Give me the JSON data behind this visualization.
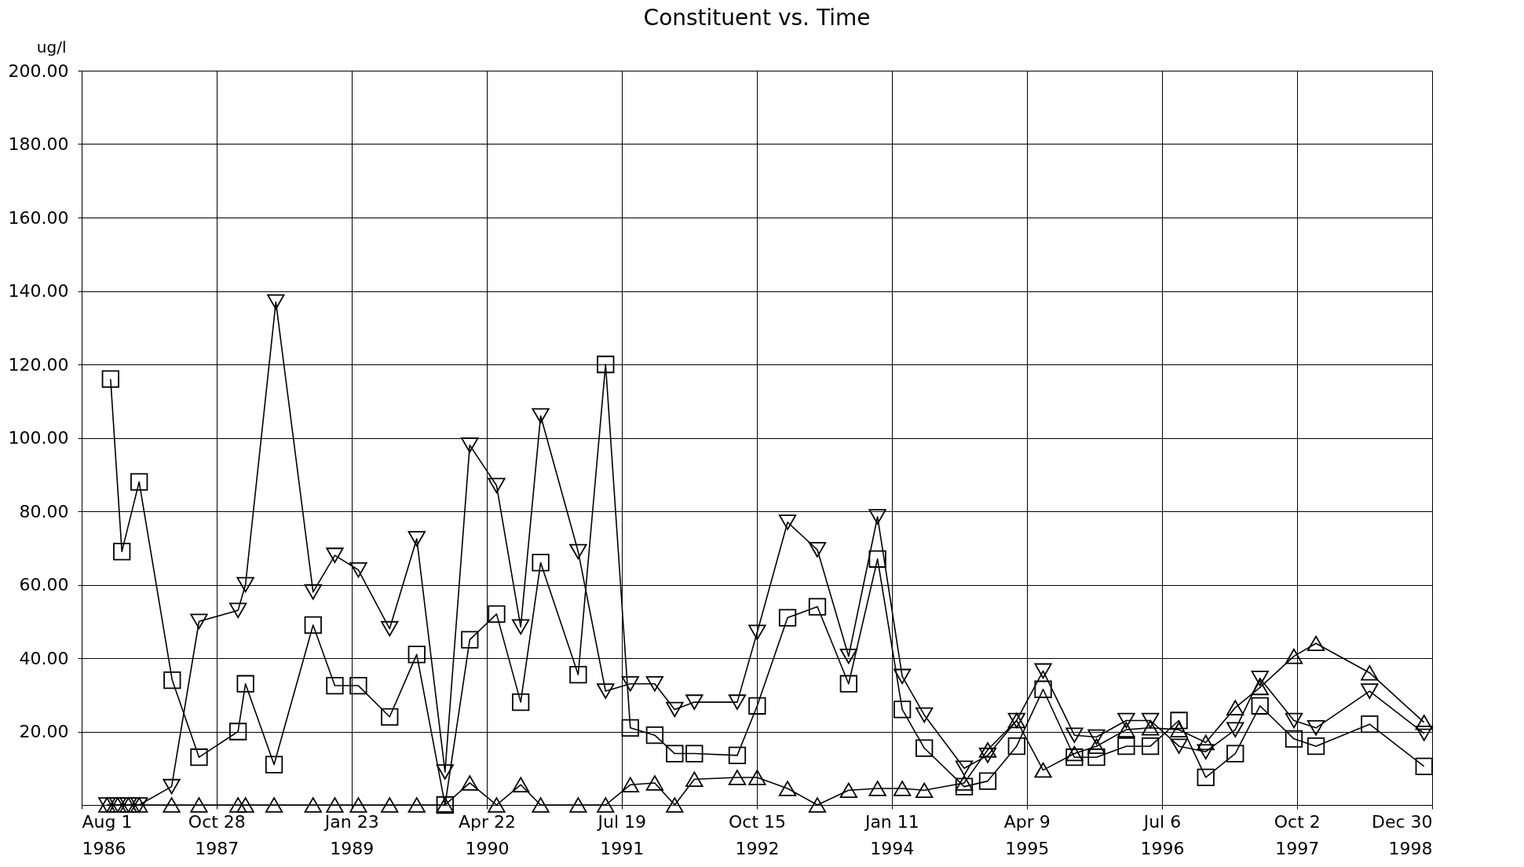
{
  "chart_data": {
    "type": "line",
    "title": "Constituent vs. Time",
    "ylabel": "ug/l",
    "ylim": [
      0,
      200
    ],
    "yticks": [
      {
        "value": 20,
        "label": "20.00"
      },
      {
        "value": 40,
        "label": "40.00"
      },
      {
        "value": 60,
        "label": "60.00"
      },
      {
        "value": 80,
        "label": "80.00"
      },
      {
        "value": 100,
        "label": "100.00"
      },
      {
        "value": 120,
        "label": "120.00"
      },
      {
        "value": 140,
        "label": "140.00"
      },
      {
        "value": 160,
        "label": "160.00"
      },
      {
        "value": 180,
        "label": "180.00"
      },
      {
        "value": 200,
        "label": "200.00"
      }
    ],
    "xlim": [
      "1986-08-01",
      "1998-12-30"
    ],
    "xticks": [
      {
        "value": "1986-08-01",
        "label": "Aug 1\n1986"
      },
      {
        "value": "1987-10-28",
        "label": "Oct 28\n1987"
      },
      {
        "value": "1989-01-23",
        "label": "Jan 23\n1989"
      },
      {
        "value": "1990-04-22",
        "label": "Apr 22\n1990"
      },
      {
        "value": "1991-07-19",
        "label": "Jul 19\n1991"
      },
      {
        "value": "1992-10-15",
        "label": "Oct 15\n1992"
      },
      {
        "value": "1994-01-11",
        "label": "Jan 11\n1994"
      },
      {
        "value": "1995-04-09",
        "label": "Apr 9\n1995"
      },
      {
        "value": "1996-07-06",
        "label": "Jul 6\n1996"
      },
      {
        "value": "1997-10-02",
        "label": "Oct 2\n1997"
      },
      {
        "value": "1998-12-30",
        "label": "Dec 30\n1998"
      }
    ],
    "grid": true,
    "legend": false,
    "line_style": "solid",
    "series": [
      {
        "color": "#000000",
        "marker": "square",
        "x": [
          "1986-11-06",
          "1986-12-14",
          "1987-02-10",
          "1987-06-01",
          "1987-08-30",
          "1988-01-08",
          "1988-02-02",
          "1988-05-08",
          "1988-09-16",
          "1988-11-28",
          "1989-02-15",
          "1989-05-31",
          "1989-08-30",
          "1989-12-03",
          "1990-02-24",
          "1990-05-25",
          "1990-08-14",
          "1990-10-20",
          "1991-02-23",
          "1991-05-26",
          "1991-08-17",
          "1991-11-07",
          "1992-01-13",
          "1992-03-19",
          "1992-08-10",
          "1992-10-16",
          "1993-01-26",
          "1993-05-06",
          "1993-08-19",
          "1993-11-24",
          "1994-02-15",
          "1994-04-30",
          "1994-09-11",
          "1994-11-29",
          "1995-03-06",
          "1995-06-03",
          "1995-09-16",
          "1995-11-29",
          "1996-03-08",
          "1996-05-28",
          "1996-09-01",
          "1996-11-30",
          "1997-03-09",
          "1997-05-31",
          "1997-09-22",
          "1997-12-05",
          "1998-06-03",
          "1998-12-03"
        ],
        "values": [
          116,
          69,
          88,
          34,
          13,
          20,
          33,
          11,
          49,
          32.5,
          32.5,
          24,
          41,
          0,
          45,
          52,
          28,
          66,
          35.5,
          120,
          21,
          19,
          14,
          14,
          13.5,
          27,
          51,
          54,
          33,
          67,
          26,
          15.5,
          5,
          6.5,
          16,
          31.5,
          13,
          13,
          16,
          16,
          23,
          7.5,
          14,
          27,
          18,
          16,
          22,
          10.5
        ]
      },
      {
        "color": "#000000",
        "marker": "triangle-down",
        "x": [
          "1986-10-25",
          "1986-11-30",
          "1987-01-05",
          "1987-02-10",
          "1987-05-30",
          "1987-08-30",
          "1988-01-08",
          "1988-02-02",
          "1988-05-14",
          "1988-09-16",
          "1988-11-28",
          "1989-02-15",
          "1989-05-31",
          "1989-08-30",
          "1989-12-03",
          "1990-02-24",
          "1990-05-25",
          "1990-08-14",
          "1990-10-20",
          "1991-02-23",
          "1991-05-26",
          "1991-08-17",
          "1991-11-07",
          "1992-01-13",
          "1992-03-19",
          "1992-08-10",
          "1992-10-16",
          "1993-01-26",
          "1993-05-06",
          "1993-08-19",
          "1993-11-24",
          "1994-02-15",
          "1994-04-30",
          "1994-09-11",
          "1994-11-29",
          "1995-03-06",
          "1995-06-03",
          "1995-09-16",
          "1995-11-29",
          "1996-03-08",
          "1996-05-28",
          "1996-09-01",
          "1996-11-30",
          "1997-03-09",
          "1997-05-31",
          "1997-09-22",
          "1997-12-05",
          "1998-06-03",
          "1998-12-03"
        ],
        "values": [
          0,
          0,
          0,
          0,
          5,
          50,
          53,
          60,
          137,
          58,
          68,
          64,
          48,
          72.5,
          9,
          98,
          87,
          48.5,
          106,
          69,
          31,
          33,
          33,
          26,
          28,
          28,
          47,
          77,
          69.5,
          40.5,
          78.5,
          35,
          24.5,
          10,
          13.5,
          23,
          36.5,
          19,
          18.5,
          23,
          23,
          16,
          14.5,
          20.5,
          34.5,
          23,
          21,
          31,
          19.5
        ]
      },
      {
        "color": "#000000",
        "marker": "triangle-up",
        "x": [
          "1986-10-25",
          "1986-11-30",
          "1987-01-05",
          "1987-02-10",
          "1987-05-30",
          "1987-08-30",
          "1988-01-08",
          "1988-02-02",
          "1988-05-08",
          "1988-09-16",
          "1988-11-28",
          "1989-02-15",
          "1989-05-31",
          "1989-08-30",
          "1989-12-03",
          "1990-02-24",
          "1990-05-25",
          "1990-08-14",
          "1990-10-20",
          "1991-02-23",
          "1991-05-26",
          "1991-08-17",
          "1991-11-07",
          "1992-01-13",
          "1992-03-19",
          "1992-08-10",
          "1992-10-16",
          "1993-01-26",
          "1993-05-06",
          "1993-08-19",
          "1993-11-24",
          "1994-02-15",
          "1994-04-30",
          "1994-09-11",
          "1994-11-29",
          "1995-03-06",
          "1995-06-03",
          "1995-09-16",
          "1995-11-29",
          "1996-03-08",
          "1996-05-28",
          "1996-09-01",
          "1996-11-30",
          "1997-03-09",
          "1997-05-31",
          "1997-09-22",
          "1997-12-05",
          "1998-06-03",
          "1998-12-03"
        ],
        "values": [
          0,
          0,
          0,
          0,
          0,
          0,
          0,
          0,
          0,
          0,
          0,
          0,
          0,
          0,
          0,
          6,
          0,
          5.5,
          0,
          0,
          0,
          5.5,
          6,
          0,
          7,
          7.5,
          7.5,
          4.5,
          0,
          4,
          4.5,
          4.5,
          4,
          6,
          15,
          23,
          9.5,
          14,
          16,
          20.5,
          21,
          20.5,
          17,
          26.5,
          32,
          40.5,
          44,
          36,
          22.5
        ]
      }
    ]
  }
}
